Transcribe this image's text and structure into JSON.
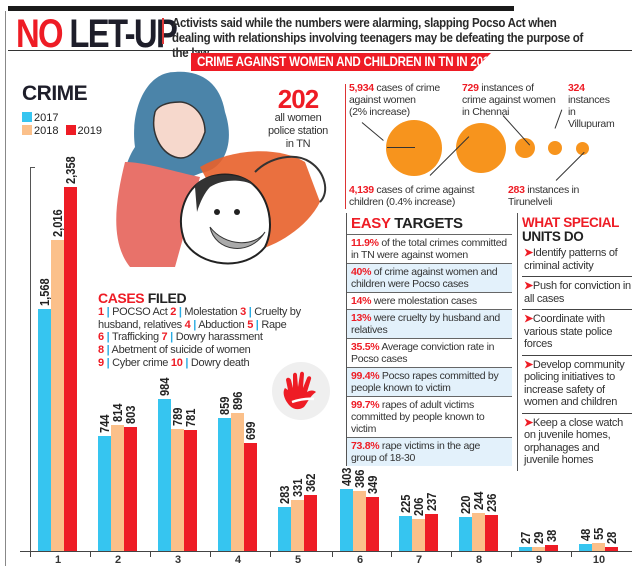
{
  "header": {
    "headline_part1": "NO",
    "headline_part2": "LET-UP",
    "subhead": "Activists said while the numbers were alarming, slapping Pocso Act when dealing with relationships involving teenagers may be defeating the purpose of the law",
    "banner": "CRIME AGAINST WOMEN AND CHILDREN IN TN IN 2019"
  },
  "colors": {
    "accent_red": "#ee1c25",
    "y2017": "#36c5f0",
    "y2018": "#fbc08a",
    "y2019": "#ee1c25",
    "bubble": "#f7941d",
    "table_alt": "#e3f1fb"
  },
  "crime_chart": {
    "title": "CRIME",
    "legend": [
      {
        "label": "2017",
        "color": "#36c5f0"
      },
      {
        "label": "2018",
        "color": "#fbc08a"
      },
      {
        "label": "2019",
        "color": "#ee1c25"
      }
    ]
  },
  "chart_data": {
    "type": "bar",
    "title": "CRIME",
    "xlabel": "",
    "ylabel": "",
    "categories": [
      "1",
      "2",
      "3",
      "4",
      "5",
      "6",
      "7",
      "8",
      "9",
      "10"
    ],
    "category_names": [
      "POCSO Act",
      "Molestation",
      "Cruelty by husband, relatives",
      "Abduction",
      "Rape",
      "Trafficking",
      "Dowry harassment",
      "Abetment of suicide of women",
      "Cyber crime",
      "Dowry death"
    ],
    "series": [
      {
        "name": "2017",
        "color": "#36c5f0",
        "values": [
          1568,
          744,
          984,
          859,
          283,
          403,
          225,
          220,
          27,
          48
        ]
      },
      {
        "name": "2018",
        "color": "#fbc08a",
        "values": [
          2016,
          814,
          789,
          896,
          331,
          386,
          206,
          244,
          29,
          55
        ]
      },
      {
        "name": "2019",
        "color": "#ee1c25",
        "values": [
          2358,
          803,
          781,
          699,
          362,
          349,
          237,
          236,
          38,
          28
        ]
      }
    ],
    "value_labels": [
      [
        "1,568",
        "2,016",
        "2,358"
      ],
      [
        "744",
        "814",
        "803"
      ],
      [
        "984",
        "789",
        "781"
      ],
      [
        "859",
        "896",
        "699"
      ],
      [
        "283",
        "331",
        "362"
      ],
      [
        "403",
        "386",
        "349"
      ],
      [
        "225",
        "206",
        "237"
      ],
      [
        "220",
        "244",
        "236"
      ],
      [
        "27",
        "29",
        "38"
      ],
      [
        "48",
        "55",
        "28"
      ]
    ],
    "ylim": [
      0,
      2358
    ],
    "grid": false,
    "legend_position": "top-left"
  },
  "stat_202": {
    "number": "202",
    "line1": "all women",
    "line2": "police station",
    "line3": "in TN"
  },
  "bubbles": [
    {
      "number": "5,934",
      "text": [
        "cases of crime",
        "against women",
        "(2% increase)"
      ]
    },
    {
      "number": "4,139",
      "text": [
        "cases of crime against",
        "children (0.4% increase)"
      ]
    },
    {
      "number": "729",
      "text": [
        "instances of",
        "crime against women",
        "in Chennai"
      ]
    },
    {
      "number": "324",
      "text": [
        "instances",
        "in",
        "Villupuram"
      ]
    },
    {
      "number": "283",
      "text": [
        "instances in",
        "Tirunelveli"
      ]
    }
  ],
  "easy_targets": {
    "title_red": "EASY",
    "title_dark": "TARGETS",
    "rows": [
      {
        "pct": "11.9%",
        "text": "of the total crimes committed in TN were against women"
      },
      {
        "pct": "40%",
        "text": "of crime against women and children were Pocso cases"
      },
      {
        "pct": "14%",
        "text": "were molestation cases"
      },
      {
        "pct": "13%",
        "text": "were cruelty by husband and relatives"
      },
      {
        "pct": "35.5%",
        "text": "Average conviction rate in Pocso cases"
      },
      {
        "pct": "99.4%",
        "text": "Pocso rapes committed by people known to victim"
      },
      {
        "pct": "99.7%",
        "text": "rapes of adult victims committed by people known to victim"
      },
      {
        "pct": "73.8%",
        "text": "rape victims in the age group of 18-30"
      }
    ]
  },
  "special_units": {
    "title_red": "WHAT SPECIAL",
    "title_dark": "UNITS DO",
    "items": [
      "Identify patterns of criminal activity",
      "Push for conviction in all cases",
      "Coordinate with various state police forces",
      "Develop community policing initiatives to increase safety of women and children",
      "Keep a close watch on juvenile homes, orphanages and juvenile homes"
    ]
  },
  "cases_filed": {
    "title_red": "CASES",
    "title_dark": "FILED",
    "items": [
      {
        "n": "1",
        "label": "POCSO Act"
      },
      {
        "n": "2",
        "label": "Molestation"
      },
      {
        "n": "3",
        "label": "Cruelty by husband, relatives"
      },
      {
        "n": "4",
        "label": "Abduction"
      },
      {
        "n": "5",
        "label": "Rape"
      },
      {
        "n": "6",
        "label": "Trafficking"
      },
      {
        "n": "7",
        "label": "Dowry harassment"
      },
      {
        "n": "8",
        "label": "Abetment of suicide of women"
      },
      {
        "n": "9",
        "label": "Cyber crime"
      },
      {
        "n": "10",
        "label": "Dowry death"
      }
    ]
  },
  "icons": {
    "illustration": "distressed-woman-and-child-illustration",
    "hand": "stop-hand-icon",
    "bullet": "arrow-bullet-icon"
  }
}
